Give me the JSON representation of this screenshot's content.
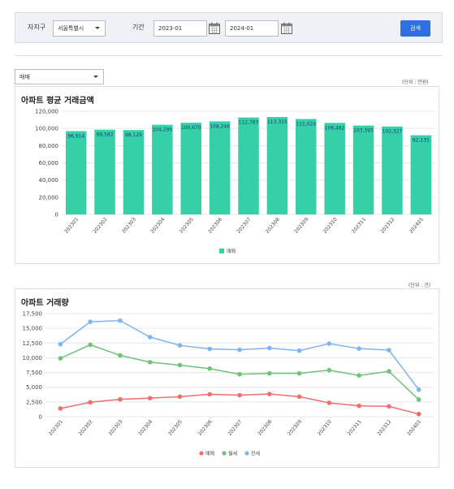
{
  "filter": {
    "region_label": "자치구",
    "region_value": "서울특별시",
    "period_label": "기간",
    "start_date": "2023-01",
    "end_date": "2024-01",
    "search_button": "검색"
  },
  "type_select": {
    "value": "매매"
  },
  "chart1_unit": "(단위 : 만원)",
  "chart2_unit": "(단위 : 건)",
  "colors": {
    "bar": "#35d0a8",
    "line_sale": "#ef6e6e",
    "line_monthly": "#6fc27a",
    "line_jeonse": "#7eb4f1",
    "button": "#2f6fe0"
  },
  "chart_data": [
    {
      "type": "bar",
      "title": "아파트 평균 거래금액",
      "categories": [
        "202301",
        "202302",
        "202303",
        "202304",
        "202305",
        "202306",
        "202307",
        "202308",
        "202309",
        "202310",
        "202311",
        "202312",
        "202401"
      ],
      "series": [
        {
          "name": "매매",
          "values": [
            96914,
            98582,
            98129,
            104295,
            106670,
            108246,
            112783,
            113315,
            111024,
            106482,
            103395,
            102327,
            92135
          ]
        }
      ],
      "value_labels": [
        "96,914",
        "98,582",
        "98,129",
        "104,295",
        "106,670",
        "108,246",
        "112,783",
        "113,315",
        "111,024",
        "106,482",
        "103,395",
        "102,327",
        "92,135"
      ],
      "y_ticks": [
        "0",
        "20,000",
        "40,000",
        "60,000",
        "80,000",
        "100,000",
        "120,000"
      ],
      "ylim": [
        0,
        120000
      ],
      "grid": true,
      "legend": "bottom-center"
    },
    {
      "type": "line",
      "title": "아파트 거래량",
      "categories": [
        "202301",
        "202302",
        "202303",
        "202304",
        "202305",
        "202306",
        "202307",
        "202308",
        "202309",
        "202310",
        "202311",
        "202312",
        "202401"
      ],
      "series": [
        {
          "name": "매매",
          "values": [
            1400,
            2450,
            2950,
            3150,
            3400,
            3800,
            3650,
            3850,
            3400,
            2350,
            1850,
            1750,
            450
          ]
        },
        {
          "name": "월세",
          "values": [
            9900,
            12200,
            10400,
            9250,
            8750,
            8150,
            7200,
            7350,
            7350,
            7900,
            7000,
            7700,
            2900
          ]
        },
        {
          "name": "전세",
          "values": [
            12300,
            16100,
            16300,
            13500,
            12100,
            11500,
            11350,
            11650,
            11200,
            12400,
            11550,
            11300,
            4600
          ]
        }
      ],
      "y_ticks": [
        "0",
        "2,500",
        "5,000",
        "7,500",
        "10,000",
        "12,500",
        "15,000",
        "17,500"
      ],
      "ylim": [
        0,
        17500
      ],
      "grid": true,
      "legend": "bottom-center"
    }
  ]
}
